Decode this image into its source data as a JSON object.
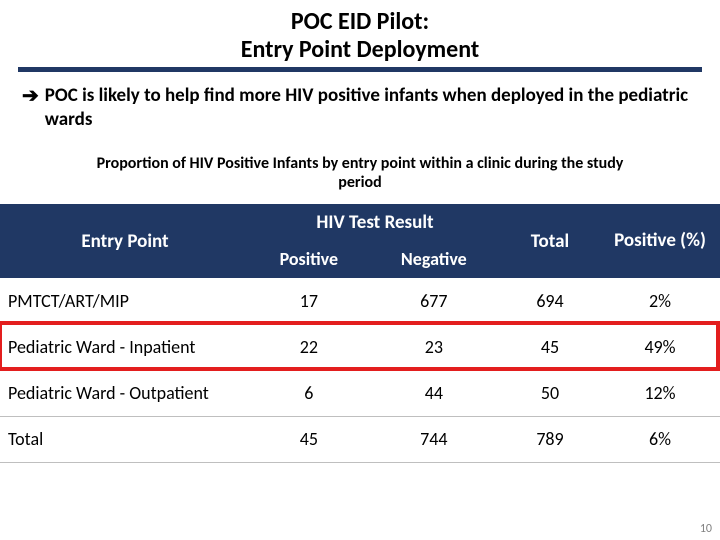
{
  "title": {
    "line1": "POC EID Pilot:",
    "line2": "Entry Point Deployment",
    "underline_color": "#203864"
  },
  "bullet": {
    "arrow": "→",
    "text": "POC is likely to help find more HIV positive infants when deployed in the pediatric wards"
  },
  "subtitle": "Proportion of HIV Positive Infants by entry point within a clinic during the study period",
  "table": {
    "type": "table",
    "header_bg": "#203864",
    "header_fg": "#ffffff",
    "columns": {
      "entry_point": "Entry Point",
      "hiv_group": "HIV Test Result",
      "positive": "Positive",
      "negative": "Negative",
      "total": "Total",
      "pct": "Positive (%)"
    },
    "rows": [
      {
        "label": "PMTCT/ART/MIP",
        "positive": "17",
        "negative": "677",
        "total": "694",
        "pct": "2%"
      },
      {
        "label": "Pediatric Ward - Inpatient",
        "positive": "22",
        "negative": "23",
        "total": "45",
        "pct": "49%"
      },
      {
        "label": "Pediatric Ward - Outpatient",
        "positive": "6",
        "negative": "44",
        "total": "50",
        "pct": "12%"
      },
      {
        "label": "Total",
        "positive": "45",
        "negative": "744",
        "total": "789",
        "pct": "6%"
      }
    ],
    "highlight_row_index": 1,
    "highlight_color": "#e31e1e"
  },
  "page_number": "10"
}
